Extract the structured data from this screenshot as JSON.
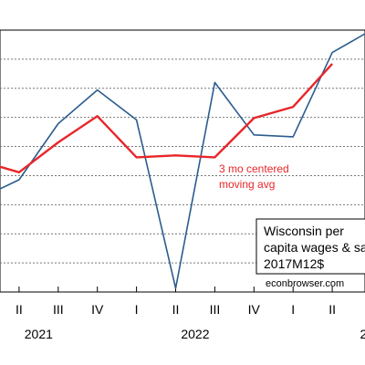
{
  "chart_data": {
    "type": "line",
    "x": [
      "2020Q4",
      "2021Q1",
      "2021Q2",
      "2021Q3",
      "2021Q4",
      "2022Q1",
      "2022Q2",
      "2022Q3",
      "2022Q4",
      "2023Q1",
      "2023Q2",
      "2023Q3"
    ],
    "series": [
      {
        "color": "#2b5c8f",
        "values": [
          5.45,
          5.5,
          5.65,
          5.74,
          5.66,
          5.21,
          5.76,
          5.62,
          5.615,
          5.84,
          5.9,
          null
        ]
      },
      {
        "color": "#e8262a",
        "values": [
          5.55,
          5.52,
          5.6,
          5.67,
          5.56,
          5.565,
          5.56,
          5.665,
          5.695,
          5.81,
          null,
          null
        ]
      }
    ],
    "grid": true,
    "ylim": [
      5.2,
      5.9
    ],
    "x_tick_labels": [
      "II",
      "III",
      "IV",
      "I",
      "II",
      "III",
      "IV",
      "I",
      "II"
    ],
    "x_tick_data": [
      1,
      2,
      3,
      4,
      5,
      6,
      7,
      8,
      9
    ],
    "x_ticks_first": 0,
    "year_labels": [
      {
        "label": "2021",
        "at": 1.5
      },
      {
        "label": "2022",
        "at": 5.5
      },
      {
        "label": "2",
        "at": 9.8
      }
    ],
    "annotation": {
      "lines": [
        "3 mo centered",
        "moving avg"
      ]
    },
    "legend": {
      "lines": [
        "Wisconsin per",
        "capita wages & sal",
        "2017M12$"
      ],
      "position": "bottom-right"
    },
    "source": "econbrowser.com"
  }
}
